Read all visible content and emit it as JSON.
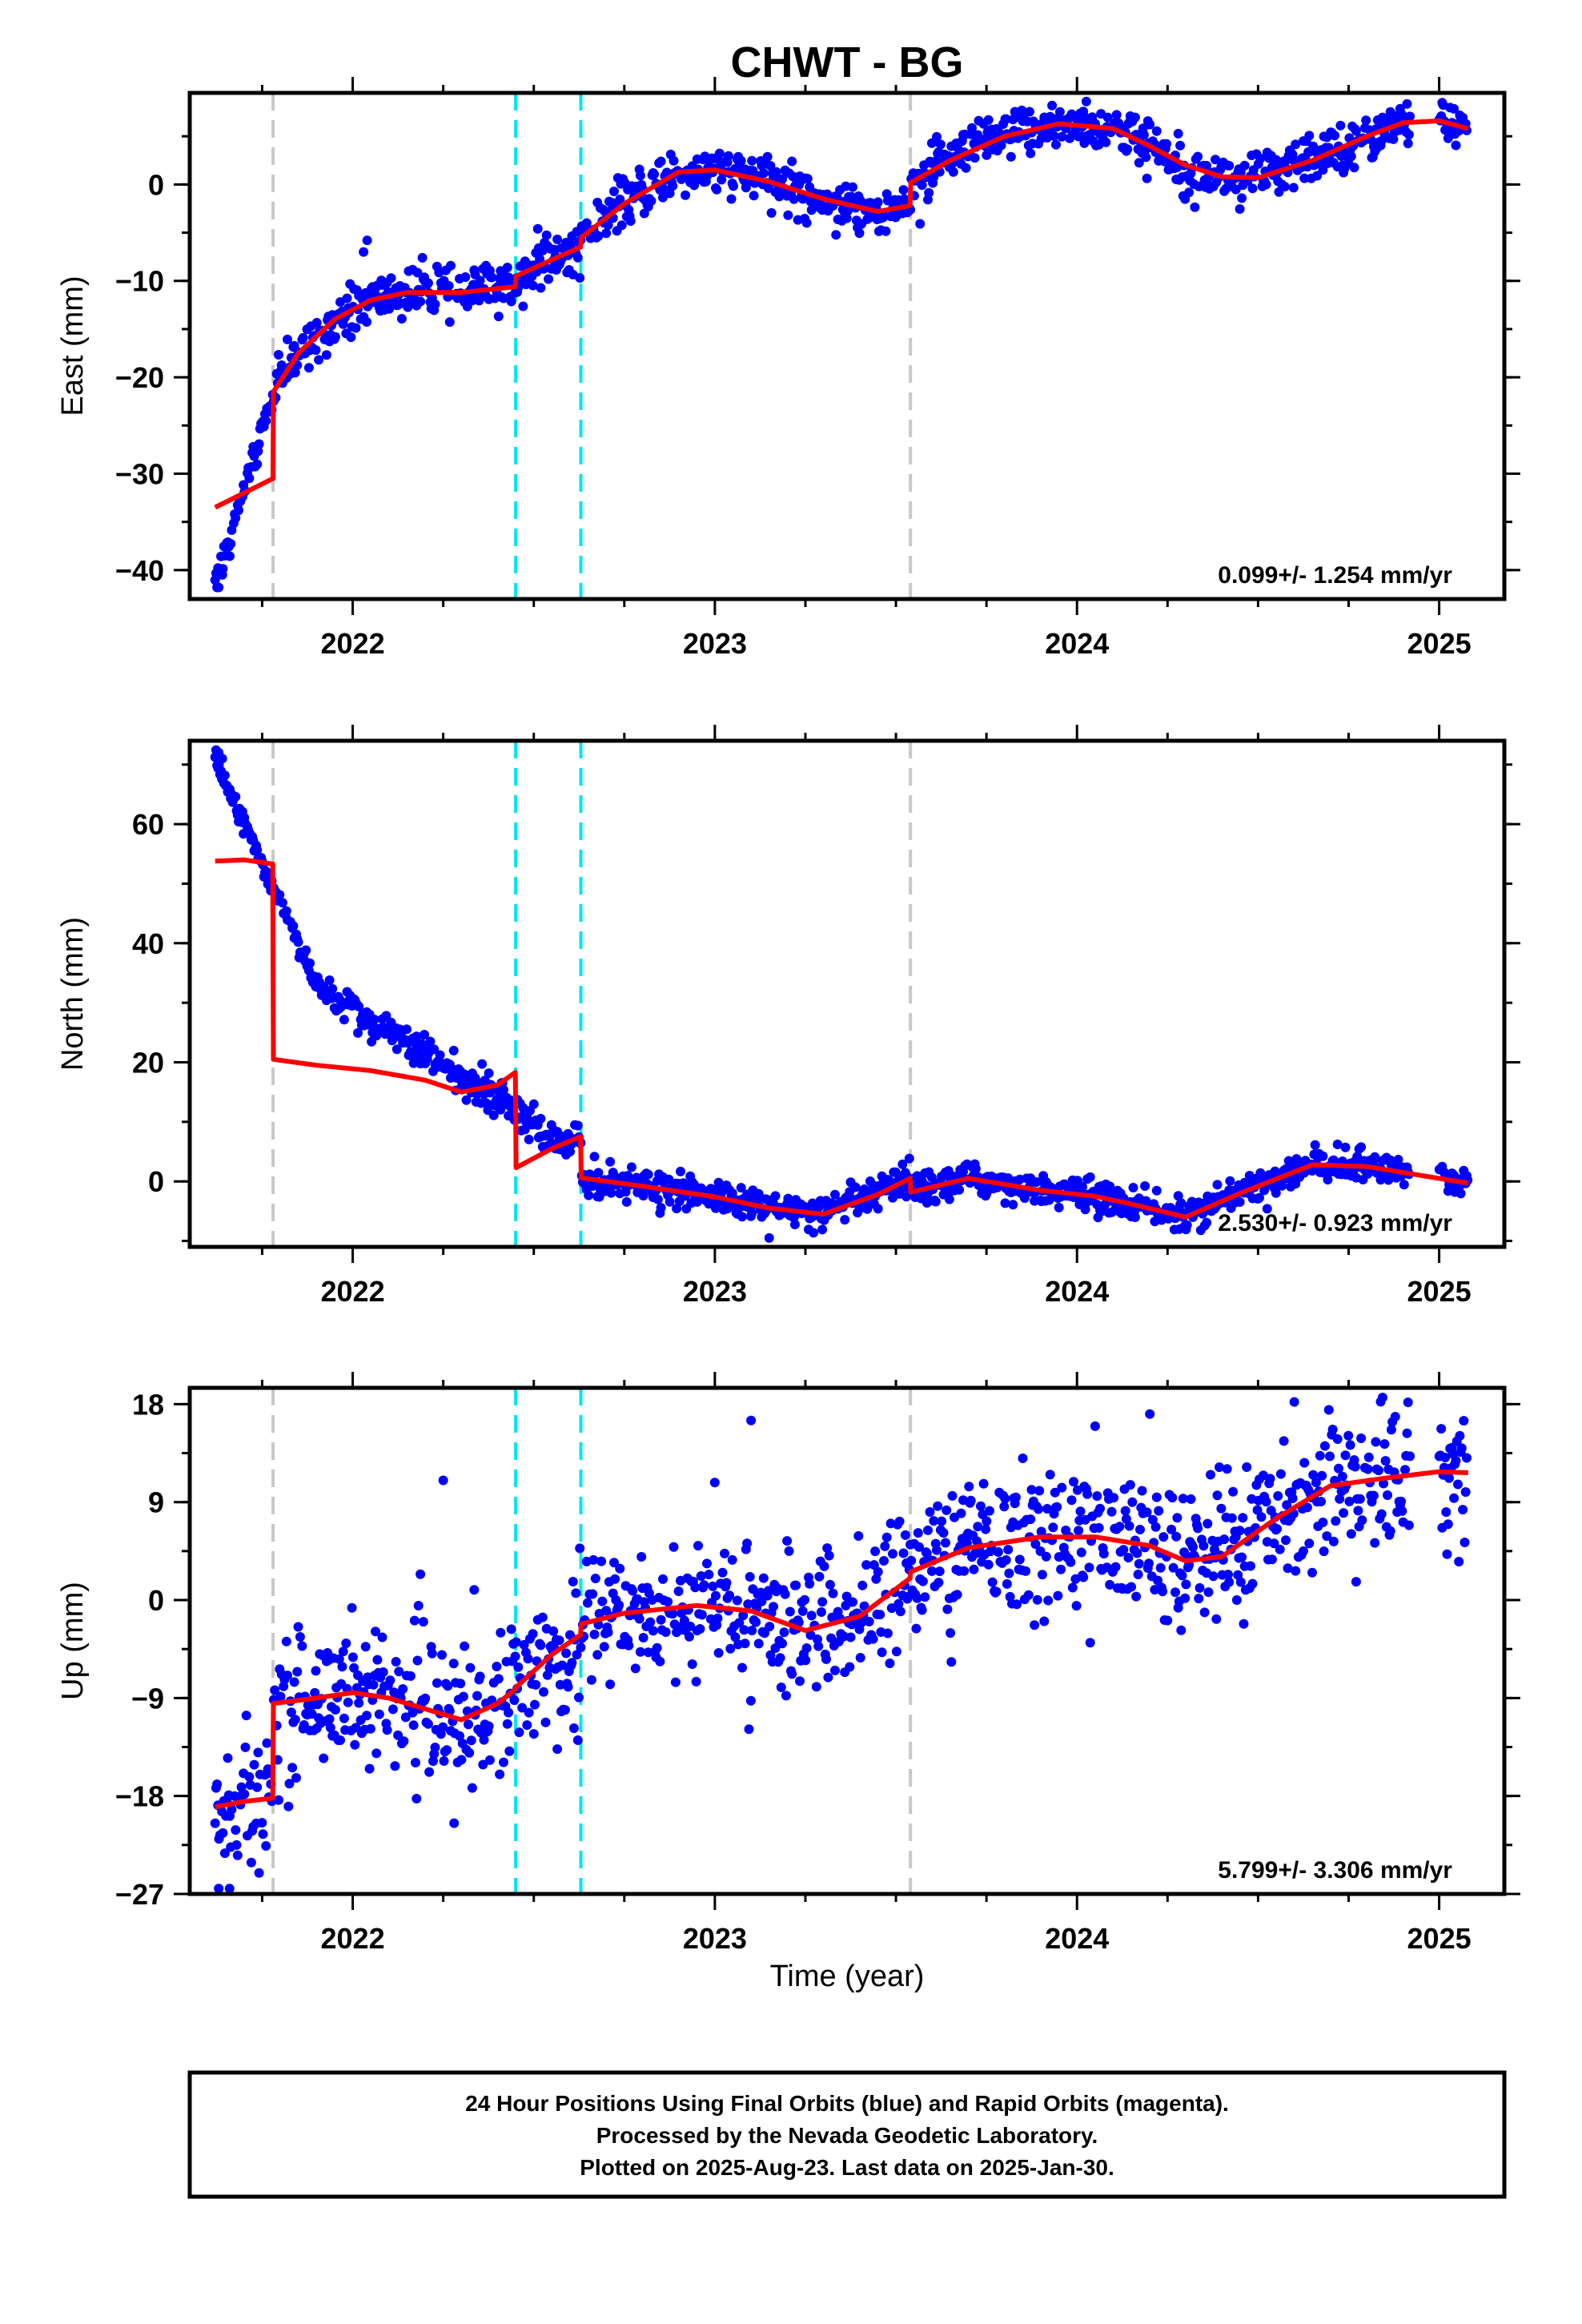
{
  "title": "CHWT - BG",
  "x_axis_label": "Time (year)",
  "caption": [
    "24 Hour Positions Using Final Orbits (blue) and Rapid Orbits (magenta).",
    "Processed by the Nevada Geodetic Laboratory.",
    "Plotted on 2025-Aug-23. Last data on 2025-Jan-30."
  ],
  "colors": {
    "data": "#0000ff",
    "model": "#ff0000",
    "equipment_change": "#c8c8c8",
    "earthquake": "#00e5ee"
  },
  "chart_data": [
    {
      "type": "scatter",
      "component": "East",
      "ylabel": "East (mm)",
      "xlim": [
        2021.55,
        2025.18
      ],
      "ylim": [
        -43,
        9.5
      ],
      "yticks": [
        -40,
        -30,
        -20,
        -10,
        0
      ],
      "xticks": [
        2022,
        2023,
        2024,
        2025
      ],
      "rate_text": "0.099+/- 1.254 mm/yr",
      "equipment_changes": [
        2021.78,
        2023.54
      ],
      "earthquakes": [
        2022.45,
        2022.63
      ],
      "model": [
        [
          2021.62,
          -33.5
        ],
        [
          2021.7,
          -32.0
        ],
        [
          2021.78,
          -30.5
        ],
        [
          2021.781,
          -21.5
        ],
        [
          2021.85,
          -17.5
        ],
        [
          2021.95,
          -14.0
        ],
        [
          2022.05,
          -12.0
        ],
        [
          2022.15,
          -11.2
        ],
        [
          2022.3,
          -11.2
        ],
        [
          2022.449,
          -10.6
        ],
        [
          2022.451,
          -9.5
        ],
        [
          2022.55,
          -7.8
        ],
        [
          2022.629,
          -6.5
        ],
        [
          2022.631,
          -5.5
        ],
        [
          2022.75,
          -2.0
        ],
        [
          2022.9,
          1.3
        ],
        [
          2023.0,
          1.5
        ],
        [
          2023.15,
          0.3
        ],
        [
          2023.3,
          -1.5
        ],
        [
          2023.45,
          -2.8
        ],
        [
          2023.539,
          -2.2
        ],
        [
          2023.541,
          0.2
        ],
        [
          2023.65,
          2.5
        ],
        [
          2023.8,
          5.0
        ],
        [
          2023.95,
          6.3
        ],
        [
          2024.1,
          5.8
        ],
        [
          2024.2,
          4.0
        ],
        [
          2024.3,
          2.0
        ],
        [
          2024.4,
          0.8
        ],
        [
          2024.5,
          0.7
        ],
        [
          2024.65,
          2.5
        ],
        [
          2024.8,
          5.0
        ],
        [
          2024.9,
          6.4
        ],
        [
          2025.0,
          6.6
        ],
        [
          2025.08,
          5.8
        ]
      ],
      "scatter_sd": 1.2,
      "outliers": [
        [
          2022.04,
          -5.8
        ],
        [
          2022.03,
          -7.0
        ],
        [
          2021.63,
          -41.8
        ],
        [
          2021.64,
          -40.5
        ]
      ]
    },
    {
      "type": "scatter",
      "component": "North",
      "ylabel": "North (mm)",
      "xlim": [
        2021.55,
        2025.18
      ],
      "ylim": [
        -11,
        74
      ],
      "yticks": [
        0,
        20,
        40,
        60
      ],
      "xticks": [
        2022,
        2023,
        2024,
        2025
      ],
      "rate_text": "2.530+/- 0.923 mm/yr",
      "equipment_changes": [
        2021.78,
        2023.54
      ],
      "earthquakes": [
        2022.45,
        2022.63
      ],
      "model": [
        [
          2021.62,
          53.8
        ],
        [
          2021.7,
          54.0
        ],
        [
          2021.779,
          53.3
        ],
        [
          2021.781,
          20.5
        ],
        [
          2021.9,
          19.5
        ],
        [
          2022.05,
          18.6
        ],
        [
          2022.2,
          17.0
        ],
        [
          2022.3,
          15.0
        ],
        [
          2022.4,
          16.2
        ],
        [
          2022.449,
          18.3
        ],
        [
          2022.451,
          2.3
        ],
        [
          2022.55,
          5.5
        ],
        [
          2022.629,
          7.5
        ],
        [
          2022.631,
          0.6
        ],
        [
          2022.8,
          -0.8
        ],
        [
          2023.0,
          -2.6
        ],
        [
          2023.15,
          -4.5
        ],
        [
          2023.3,
          -5.5
        ],
        [
          2023.45,
          -2.2
        ],
        [
          2023.539,
          0.5
        ],
        [
          2023.541,
          -1.8
        ],
        [
          2023.7,
          0.5
        ],
        [
          2023.9,
          -1.5
        ],
        [
          2024.05,
          -2.5
        ],
        [
          2024.15,
          -3.8
        ],
        [
          2024.3,
          -6.0
        ],
        [
          2024.45,
          -2.0
        ],
        [
          2024.65,
          2.8
        ],
        [
          2024.8,
          2.5
        ],
        [
          2024.95,
          1.0
        ],
        [
          2025.08,
          -0.3
        ]
      ],
      "scatter_sd": 1.3,
      "outliers": [
        [
          2021.63,
          72.0
        ],
        [
          2021.64,
          71.0
        ],
        [
          2023.15,
          -9.5
        ]
      ]
    },
    {
      "type": "scatter",
      "component": "Up",
      "ylabel": "Up (mm)",
      "xlim": [
        2021.55,
        2025.18
      ],
      "ylim": [
        -27,
        19.5
      ],
      "yticks": [
        -27,
        -18,
        -9,
        0,
        9,
        18
      ],
      "xticks": [
        2022,
        2023,
        2024,
        2025
      ],
      "rate_text": "5.799+/- 3.306 mm/yr",
      "equipment_changes": [
        2021.78,
        2023.54
      ],
      "earthquakes": [
        2022.45,
        2022.63
      ],
      "model": [
        [
          2021.62,
          -19.0
        ],
        [
          2021.7,
          -18.5
        ],
        [
          2021.779,
          -18.2
        ],
        [
          2021.781,
          -9.5
        ],
        [
          2021.9,
          -9.0
        ],
        [
          2022.0,
          -8.5
        ],
        [
          2022.1,
          -9.0
        ],
        [
          2022.3,
          -11.0
        ],
        [
          2022.4,
          -9.5
        ],
        [
          2022.449,
          -8.2
        ],
        [
          2022.451,
          -8.0
        ],
        [
          2022.55,
          -5.0
        ],
        [
          2022.629,
          -3.2
        ],
        [
          2022.631,
          -2.2
        ],
        [
          2022.75,
          -1.2
        ],
        [
          2022.95,
          -0.5
        ],
        [
          2023.1,
          -1.0
        ],
        [
          2023.25,
          -2.8
        ],
        [
          2023.4,
          -1.5
        ],
        [
          2023.539,
          2.0
        ],
        [
          2023.541,
          2.6
        ],
        [
          2023.7,
          4.8
        ],
        [
          2023.9,
          5.8
        ],
        [
          2024.05,
          5.8
        ],
        [
          2024.2,
          5.0
        ],
        [
          2024.3,
          3.6
        ],
        [
          2024.4,
          4.0
        ],
        [
          2024.55,
          7.5
        ],
        [
          2024.7,
          10.5
        ],
        [
          2024.85,
          11.2
        ],
        [
          2025.0,
          11.8
        ],
        [
          2025.08,
          11.7
        ]
      ],
      "scatter_sd": 3.2,
      "outliers": [
        [
          2022.25,
          11.0
        ],
        [
          2023.1,
          16.5
        ],
        [
          2022.28,
          -20.5
        ],
        [
          2021.63,
          -26.5
        ],
        [
          2021.66,
          -26.5
        ],
        [
          2024.6,
          18.2
        ]
      ]
    }
  ]
}
